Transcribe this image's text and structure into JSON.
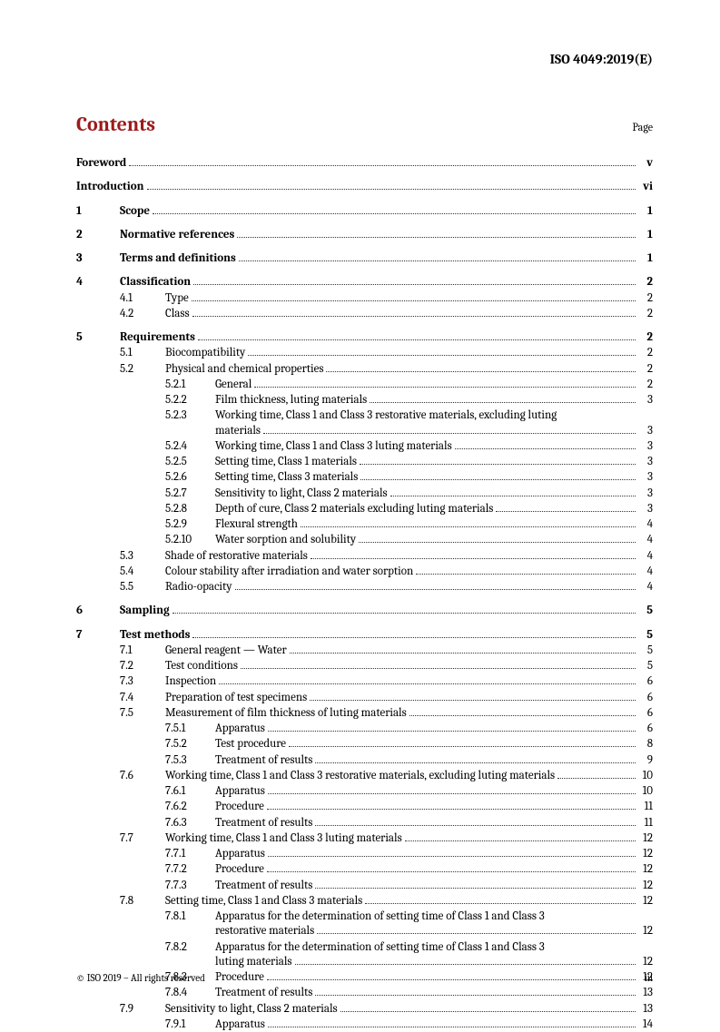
{
  "doc_id": "ISO 4049:2019(E)",
  "contents_title": "Contents",
  "page_label": "Page",
  "footer_left": "© ISO 2019 – All rights reserved",
  "footer_right": "iii",
  "toc": {
    "foreword": {
      "title": "Foreword",
      "page": "v"
    },
    "introduction": {
      "title": "Introduction",
      "page": "vi"
    },
    "s1": {
      "num": "1",
      "title": "Scope",
      "page": "1"
    },
    "s2": {
      "num": "2",
      "title": "Normative references",
      "page": "1"
    },
    "s3": {
      "num": "3",
      "title": "Terms and definitions",
      "page": "1"
    },
    "s4": {
      "num": "4",
      "title": "Classification",
      "page": "2",
      "s4_1": {
        "num": "4.1",
        "title": "Type",
        "page": "2"
      },
      "s4_2": {
        "num": "4.2",
        "title": "Class",
        "page": "2"
      }
    },
    "s5": {
      "num": "5",
      "title": "Requirements",
      "page": "2",
      "s5_1": {
        "num": "5.1",
        "title": "Biocompatibility",
        "page": "2"
      },
      "s5_2": {
        "num": "5.2",
        "title": "Physical and chemical properties",
        "page": "2",
        "s5_2_1": {
          "num": "5.2.1",
          "title": "General",
          "page": "2"
        },
        "s5_2_2": {
          "num": "5.2.2",
          "title": "Film thickness, luting materials",
          "page": "3"
        },
        "s5_2_3": {
          "num": "5.2.3",
          "title1": "Working time, Class 1 and Class 3 restorative materials, excluding luting",
          "title2": "materials",
          "page": "3"
        },
        "s5_2_4": {
          "num": "5.2.4",
          "title": "Working time, Class 1 and Class 3 luting materials",
          "page": "3"
        },
        "s5_2_5": {
          "num": "5.2.5",
          "title": "Setting time, Class 1 materials",
          "page": "3"
        },
        "s5_2_6": {
          "num": "5.2.6",
          "title": "Setting time, Class 3 materials",
          "page": "3"
        },
        "s5_2_7": {
          "num": "5.2.7",
          "title": "Sensitivity to light, Class 2 materials",
          "page": "3"
        },
        "s5_2_8": {
          "num": "5.2.8",
          "title": "Depth of cure, Class 2 materials excluding luting materials",
          "page": "3"
        },
        "s5_2_9": {
          "num": "5.2.9",
          "title": "Flexural strength",
          "page": "4"
        },
        "s5_2_10": {
          "num": "5.2.10",
          "title": "Water sorption and solubility",
          "page": "4"
        }
      },
      "s5_3": {
        "num": "5.3",
        "title": "Shade of restorative materials",
        "page": "4"
      },
      "s5_4": {
        "num": "5.4",
        "title": "Colour stability after irradiation and water sorption",
        "page": "4"
      },
      "s5_5": {
        "num": "5.5",
        "title": "Radio-opacity",
        "page": "4"
      }
    },
    "s6": {
      "num": "6",
      "title": "Sampling",
      "page": "5"
    },
    "s7": {
      "num": "7",
      "title": "Test methods",
      "page": "5",
      "s7_1": {
        "num": "7.1",
        "title": "General reagent — Water",
        "page": "5"
      },
      "s7_2": {
        "num": "7.2",
        "title": "Test conditions",
        "page": "5"
      },
      "s7_3": {
        "num": "7.3",
        "title": "Inspection",
        "page": "6"
      },
      "s7_4": {
        "num": "7.4",
        "title": "Preparation of test specimens",
        "page": "6"
      },
      "s7_5": {
        "num": "7.5",
        "title": "Measurement of film thickness of luting materials",
        "page": "6",
        "s7_5_1": {
          "num": "7.5.1",
          "title": "Apparatus",
          "page": "6"
        },
        "s7_5_2": {
          "num": "7.5.2",
          "title": "Test procedure",
          "page": "8"
        },
        "s7_5_3": {
          "num": "7.5.3",
          "title": "Treatment of results",
          "page": "9"
        }
      },
      "s7_6": {
        "num": "7.6",
        "title": "Working time, Class 1 and Class 3 restorative materials, excluding luting materials",
        "page": "10",
        "s7_6_1": {
          "num": "7.6.1",
          "title": "Apparatus",
          "page": "10"
        },
        "s7_6_2": {
          "num": "7.6.2",
          "title": "Procedure",
          "page": "11"
        },
        "s7_6_3": {
          "num": "7.6.3",
          "title": "Treatment of results",
          "page": "11"
        }
      },
      "s7_7": {
        "num": "7.7",
        "title": "Working time, Class 1 and Class 3 luting materials",
        "page": "12",
        "s7_7_1": {
          "num": "7.7.1",
          "title": "Apparatus",
          "page": "12"
        },
        "s7_7_2": {
          "num": "7.7.2",
          "title": "Procedure",
          "page": "12"
        },
        "s7_7_3": {
          "num": "7.7.3",
          "title": "Treatment of results",
          "page": "12"
        }
      },
      "s7_8": {
        "num": "7.8",
        "title": "Setting time, Class 1 and Class 3 materials",
        "page": "12",
        "s7_8_1": {
          "num": "7.8.1",
          "title1": "Apparatus for the determination of setting time of Class 1 and Class 3",
          "title2": "restorative materials",
          "page": "12"
        },
        "s7_8_2": {
          "num": "7.8.2",
          "title1": "Apparatus for the determination of setting time of Class 1 and Class 3",
          "title2": "luting materials",
          "page": "12"
        },
        "s7_8_3": {
          "num": "7.8.3",
          "title": "Procedure",
          "page": "12"
        },
        "s7_8_4": {
          "num": "7.8.4",
          "title": "Treatment of results",
          "page": "13"
        }
      },
      "s7_9": {
        "num": "7.9",
        "title": "Sensitivity to light, Class 2 materials",
        "page": "13",
        "s7_9_1": {
          "num": "7.9.1",
          "title": "Apparatus",
          "page": "14"
        }
      }
    }
  }
}
